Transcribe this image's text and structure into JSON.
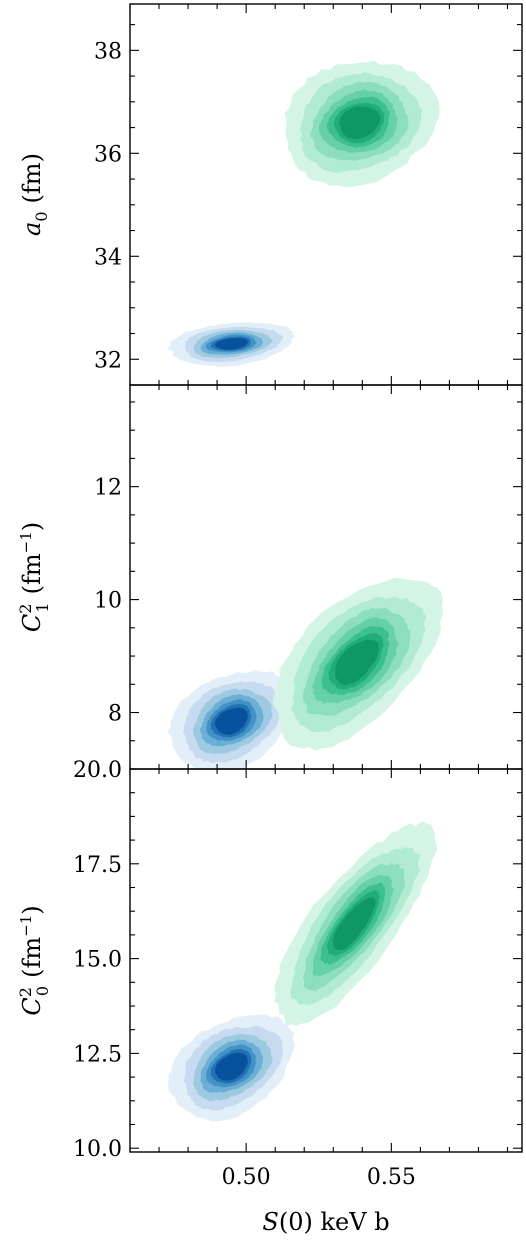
{
  "chart_data": [
    {
      "type": "contour",
      "panel": "top",
      "ylabel": {
        "var": "a",
        "sub": "0",
        "unit": "(fm)"
      },
      "xlim": [
        0.46,
        0.595
      ],
      "ylim": [
        31.5,
        38.9
      ],
      "yticks": [
        {
          "value": 32,
          "label": "32"
        },
        {
          "value": 34,
          "label": "34"
        },
        {
          "value": 36,
          "label": "36"
        },
        {
          "value": 38,
          "label": "38"
        }
      ],
      "series": [
        {
          "color": "#2b7bba",
          "center": [
            0.495,
            32.3
          ],
          "sx": 0.0085,
          "sy": 0.17,
          "rho": 0.25
        },
        {
          "color": "#2dbd7e",
          "center": [
            0.539,
            36.6
          ],
          "sx": 0.0105,
          "sy": 0.48,
          "rho": 0.15
        }
      ]
    },
    {
      "type": "contour",
      "panel": "middle",
      "ylabel": {
        "var": "C",
        "sup": "2",
        "sub": "1",
        "unit": "(fm",
        "unit_sup": "−1",
        "unit_close": ")"
      },
      "xlim": [
        0.46,
        0.595
      ],
      "ylim": [
        7.0,
        13.8
      ],
      "yticks": [
        {
          "value": 8,
          "label": "8"
        },
        {
          "value": 10,
          "label": "10"
        },
        {
          "value": 12,
          "label": "12"
        }
      ],
      "series": [
        {
          "color": "#2b7bba",
          "center": [
            0.495,
            7.85
          ],
          "sx": 0.0085,
          "sy": 0.36,
          "rho": 0.3
        },
        {
          "color": "#2dbd7e",
          "center": [
            0.538,
            8.9
          ],
          "sx": 0.0115,
          "sy": 0.6,
          "rho": 0.55
        }
      ]
    },
    {
      "type": "contour",
      "panel": "bottom",
      "ylabel": {
        "var": "C",
        "sup": "2",
        "sub": "0",
        "unit": "(fm",
        "unit_sup": "−1",
        "unit_close": ")"
      },
      "xlabel": {
        "var": "S",
        "rest": "(0) keV b"
      },
      "xlim": [
        0.46,
        0.595
      ],
      "ylim": [
        9.9,
        20.0
      ],
      "xticks": [
        {
          "value": 0.5,
          "label": "0.50"
        },
        {
          "value": 0.55,
          "label": "0.55"
        }
      ],
      "yticks": [
        {
          "value": 10.0,
          "label": "10.0"
        },
        {
          "value": 12.5,
          "label": "12.5"
        },
        {
          "value": 15.0,
          "label": "15.0"
        },
        {
          "value": 17.5,
          "label": "17.5"
        },
        {
          "value": 20.0,
          "label": "20.0"
        }
      ],
      "series": [
        {
          "color": "#2b7bba",
          "center": [
            0.495,
            12.15
          ],
          "sx": 0.0085,
          "sy": 0.55,
          "rho": 0.35
        },
        {
          "color": "#2dbd7e",
          "center": [
            0.537,
            15.9
          ],
          "sx": 0.011,
          "sy": 1.05,
          "rho": 0.78
        }
      ]
    }
  ]
}
